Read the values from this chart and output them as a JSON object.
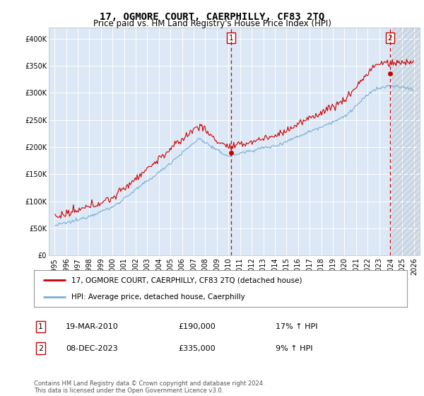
{
  "title": "17, OGMORE COURT, CAERPHILLY, CF83 2TQ",
  "subtitle": "Price paid vs. HM Land Registry's House Price Index (HPI)",
  "ylim": [
    0,
    420000
  ],
  "yticks": [
    0,
    50000,
    100000,
    150000,
    200000,
    250000,
    300000,
    350000,
    400000
  ],
  "ytick_labels": [
    "£0",
    "£50K",
    "£100K",
    "£150K",
    "£200K",
    "£250K",
    "£300K",
    "£350K",
    "£400K"
  ],
  "background_color": "#ffffff",
  "plot_bg_color": "#dce8f5",
  "grid_color": "#ffffff",
  "red_color": "#cc0000",
  "blue_color": "#7aadd4",
  "hatch_color": "#c0ccd8",
  "sale1_date": 2010.21,
  "sale1_price": 190000,
  "sale1_label": "1",
  "sale2_date": 2023.93,
  "sale2_price": 335000,
  "sale2_label": "2",
  "legend_red_label": "17, OGMORE COURT, CAERPHILLY, CF83 2TQ (detached house)",
  "legend_blue_label": "HPI: Average price, detached house, Caerphilly",
  "annotation1_text": "19-MAR-2010",
  "annotation1_price": "£190,000",
  "annotation1_hpi": "17% ↑ HPI",
  "annotation2_text": "08-DEC-2023",
  "annotation2_price": "£335,000",
  "annotation2_hpi": "9% ↑ HPI",
  "footer": "Contains HM Land Registry data © Crown copyright and database right 2024.\nThis data is licensed under the Open Government Licence v3.0.",
  "title_fontsize": 10,
  "subtitle_fontsize": 8.5,
  "tick_fontsize": 7,
  "legend_fontsize": 7.5,
  "annot_fontsize": 8,
  "footer_fontsize": 6
}
